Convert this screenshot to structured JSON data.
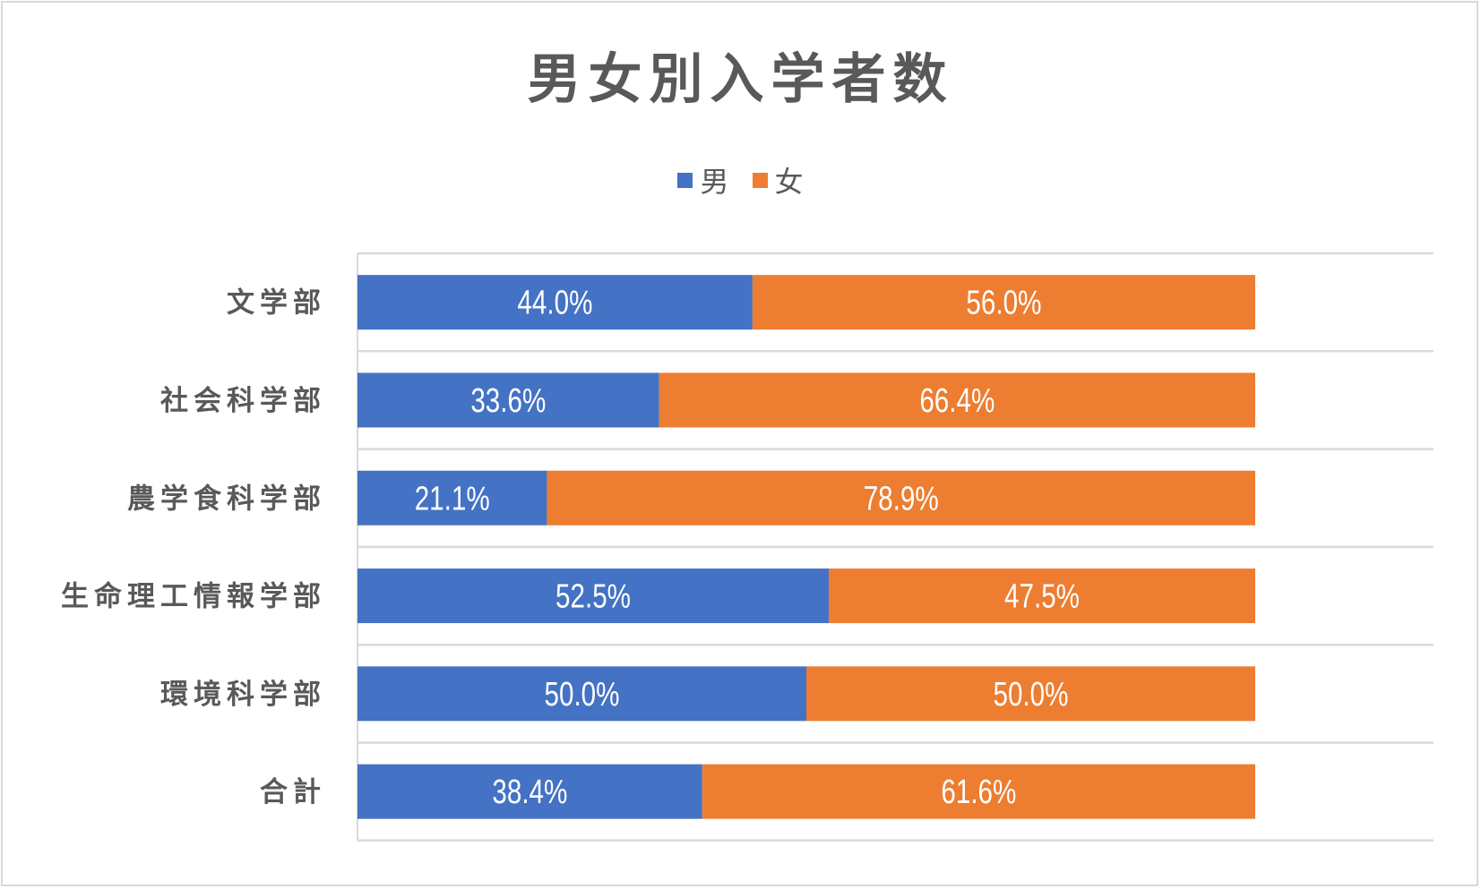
{
  "chart_data": {
    "type": "bar",
    "orientation": "horizontal",
    "stacked": "100%",
    "title": "男女別入学者数",
    "categories": [
      "文学部",
      "社会科学部",
      "農学食科学部",
      "生命理工情報学部",
      "環境科学部",
      "合計"
    ],
    "series": [
      {
        "name": "男",
        "color": "#4472c4",
        "values": [
          44.0,
          33.6,
          21.1,
          52.5,
          50.0,
          38.4
        ],
        "labels": [
          "44.0%",
          "33.6%",
          "21.1%",
          "52.5%",
          "50.0%",
          "38.4%"
        ]
      },
      {
        "name": "女",
        "color": "#ed7d31",
        "values": [
          56.0,
          66.4,
          78.9,
          47.5,
          50.0,
          61.6
        ],
        "labels": [
          "56.0%",
          "66.4%",
          "78.9%",
          "47.5%",
          "50.0%",
          "61.6%"
        ]
      }
    ],
    "xlabel": "",
    "ylabel": "",
    "xlim": [
      0,
      100
    ],
    "legend_position": "top",
    "grid": true
  }
}
